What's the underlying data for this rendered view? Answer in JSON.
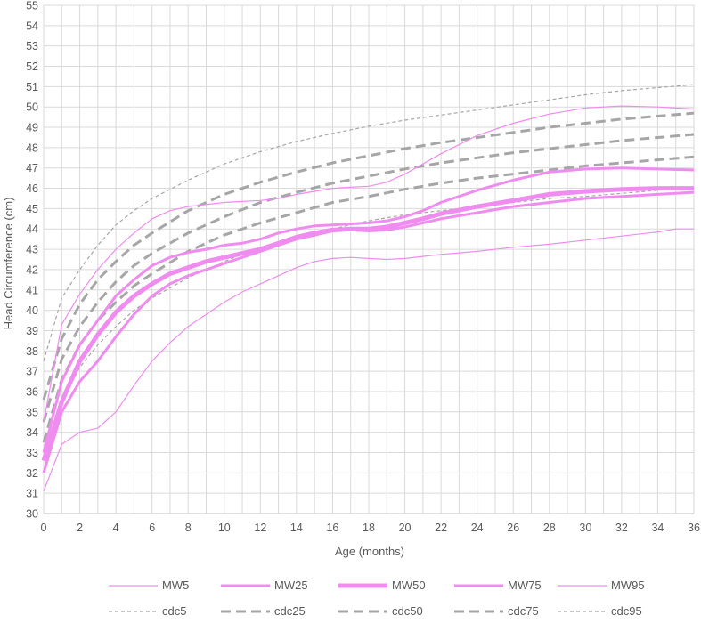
{
  "chart_data": {
    "type": "line",
    "title": "",
    "xlabel": "Age (months)",
    "ylabel": "Head Circumference (cm)",
    "xlim": [
      0,
      36
    ],
    "ylim": [
      30,
      55
    ],
    "x_ticks": [
      0,
      2,
      4,
      6,
      8,
      10,
      12,
      14,
      16,
      18,
      20,
      22,
      24,
      26,
      28,
      30,
      32,
      34,
      36
    ],
    "y_ticks": [
      30,
      31,
      32,
      33,
      34,
      35,
      36,
      37,
      38,
      39,
      40,
      41,
      42,
      43,
      44,
      45,
      46,
      47,
      48,
      49,
      50,
      51,
      52,
      53,
      54,
      55
    ],
    "grid": true,
    "legend_position": "bottom",
    "colors": {
      "mw": "#f08cf0",
      "cdc": "#a6a6a6",
      "grid": "#d9d9d9"
    },
    "series": [
      {
        "name": "MW5",
        "style": "solid",
        "weight": 1,
        "x": [
          0,
          1,
          2,
          3,
          4,
          5,
          6,
          7,
          8,
          9,
          10,
          11,
          12,
          13,
          14,
          15,
          16,
          17,
          18,
          19,
          20,
          21,
          22,
          24,
          26,
          28,
          30,
          32,
          34,
          35,
          36
        ],
        "y": [
          31.1,
          33.4,
          34.0,
          34.2,
          35.0,
          36.3,
          37.5,
          38.4,
          39.2,
          39.8,
          40.4,
          40.9,
          41.3,
          41.7,
          42.1,
          42.4,
          42.55,
          42.6,
          42.55,
          42.5,
          42.55,
          42.65,
          42.75,
          42.9,
          43.1,
          43.25,
          43.45,
          43.65,
          43.85,
          44.0,
          44.0
        ]
      },
      {
        "name": "MW25",
        "style": "solid",
        "weight": 3,
        "x": [
          0,
          1,
          2,
          3,
          4,
          5,
          6,
          7,
          8,
          9,
          10,
          11,
          12,
          13,
          14,
          15,
          16,
          17,
          18,
          19,
          20,
          21,
          22,
          24,
          26,
          28,
          30,
          32,
          34,
          36
        ],
        "y": [
          32.0,
          35.0,
          36.5,
          37.5,
          38.7,
          39.8,
          40.7,
          41.3,
          41.7,
          42.0,
          42.3,
          42.6,
          42.9,
          43.2,
          43.5,
          43.7,
          43.9,
          43.95,
          43.9,
          43.95,
          44.1,
          44.3,
          44.5,
          44.8,
          45.1,
          45.3,
          45.5,
          45.6,
          45.7,
          45.8
        ]
      },
      {
        "name": "MW50",
        "style": "solid",
        "weight": 5,
        "x": [
          0,
          1,
          2,
          3,
          4,
          5,
          6,
          7,
          8,
          9,
          10,
          11,
          12,
          13,
          14,
          15,
          16,
          17,
          18,
          19,
          20,
          21,
          22,
          24,
          26,
          28,
          30,
          32,
          34,
          36
        ],
        "y": [
          32.6,
          35.5,
          37.5,
          38.8,
          39.9,
          40.7,
          41.3,
          41.8,
          42.1,
          42.4,
          42.6,
          42.8,
          43.0,
          43.3,
          43.6,
          43.8,
          43.95,
          44.0,
          44.0,
          44.1,
          44.3,
          44.5,
          44.75,
          45.1,
          45.4,
          45.7,
          45.85,
          45.95,
          46.0,
          46.0
        ]
      },
      {
        "name": "MW75",
        "style": "solid",
        "weight": 3,
        "x": [
          0,
          1,
          2,
          3,
          4,
          5,
          6,
          7,
          8,
          9,
          10,
          11,
          12,
          13,
          14,
          15,
          16,
          17,
          18,
          19,
          20,
          21,
          22,
          24,
          26,
          28,
          30,
          32,
          34,
          36
        ],
        "y": [
          33.0,
          36.5,
          38.3,
          39.5,
          40.7,
          41.5,
          42.2,
          42.6,
          42.85,
          43.0,
          43.2,
          43.3,
          43.5,
          43.8,
          44.0,
          44.15,
          44.2,
          44.25,
          44.3,
          44.4,
          44.6,
          44.9,
          45.3,
          45.9,
          46.4,
          46.8,
          46.95,
          47.0,
          46.95,
          46.9
        ]
      },
      {
        "name": "MW95",
        "style": "solid",
        "weight": 1,
        "x": [
          0,
          1,
          2,
          3,
          4,
          5,
          6,
          7,
          8,
          9,
          10,
          11,
          12,
          13,
          14,
          15,
          16,
          17,
          18,
          19,
          20,
          21,
          22,
          24,
          26,
          28,
          30,
          32,
          34,
          36
        ],
        "y": [
          34.5,
          39.3,
          40.8,
          42.0,
          43.0,
          43.8,
          44.5,
          44.9,
          45.1,
          45.2,
          45.3,
          45.35,
          45.4,
          45.5,
          45.7,
          45.85,
          46.0,
          46.05,
          46.1,
          46.3,
          46.7,
          47.2,
          47.7,
          48.6,
          49.2,
          49.65,
          49.95,
          50.05,
          50.0,
          49.9
        ]
      },
      {
        "name": "cdc5",
        "style": "dash",
        "weight": 1,
        "x": [
          0,
          1,
          2,
          3,
          4,
          5,
          6,
          8,
          10,
          12,
          14,
          16,
          18,
          20,
          22,
          24,
          26,
          28,
          30,
          32,
          34,
          36
        ],
        "y": [
          32.1,
          35.5,
          37.2,
          38.3,
          39.2,
          40.0,
          40.6,
          41.6,
          42.4,
          43.1,
          43.6,
          44.0,
          44.4,
          44.7,
          44.9,
          45.1,
          45.3,
          45.5,
          45.6,
          45.75,
          45.9,
          46.05
        ]
      },
      {
        "name": "cdc25",
        "style": "dash",
        "weight": 3,
        "x": [
          0,
          1,
          2,
          3,
          4,
          5,
          6,
          8,
          10,
          12,
          14,
          16,
          18,
          20,
          22,
          24,
          26,
          28,
          30,
          32,
          34,
          36
        ],
        "y": [
          33.5,
          36.6,
          38.3,
          39.5,
          40.4,
          41.2,
          41.8,
          42.9,
          43.7,
          44.3,
          44.8,
          45.3,
          45.6,
          45.95,
          46.25,
          46.5,
          46.7,
          46.9,
          47.1,
          47.25,
          47.4,
          47.55
        ]
      },
      {
        "name": "cdc50",
        "style": "dash",
        "weight": 3,
        "x": [
          0,
          1,
          2,
          3,
          4,
          5,
          6,
          8,
          10,
          12,
          14,
          16,
          18,
          20,
          22,
          24,
          26,
          28,
          30,
          32,
          34,
          36
        ],
        "y": [
          34.5,
          37.6,
          39.2,
          40.4,
          41.4,
          42.2,
          42.8,
          43.8,
          44.6,
          45.3,
          45.8,
          46.25,
          46.6,
          46.95,
          47.25,
          47.5,
          47.75,
          47.95,
          48.15,
          48.35,
          48.5,
          48.65
        ]
      },
      {
        "name": "cdc75",
        "style": "dash",
        "weight": 3,
        "x": [
          0,
          1,
          2,
          3,
          4,
          5,
          6,
          8,
          10,
          12,
          14,
          16,
          18,
          20,
          22,
          24,
          26,
          28,
          30,
          32,
          34,
          36
        ],
        "y": [
          35.6,
          38.6,
          40.3,
          41.5,
          42.4,
          43.2,
          43.8,
          44.9,
          45.7,
          46.3,
          46.8,
          47.25,
          47.6,
          47.95,
          48.25,
          48.5,
          48.75,
          49.0,
          49.2,
          49.4,
          49.55,
          49.7
        ]
      },
      {
        "name": "cdc95",
        "style": "dash",
        "weight": 1,
        "x": [
          0,
          1,
          2,
          3,
          4,
          5,
          6,
          8,
          10,
          12,
          14,
          16,
          18,
          20,
          22,
          24,
          26,
          28,
          30,
          32,
          34,
          36
        ],
        "y": [
          37.5,
          40.6,
          42.0,
          43.2,
          44.2,
          44.9,
          45.5,
          46.4,
          47.2,
          47.8,
          48.3,
          48.7,
          49.05,
          49.35,
          49.6,
          49.85,
          50.1,
          50.35,
          50.6,
          50.8,
          50.95,
          51.1
        ]
      }
    ]
  }
}
